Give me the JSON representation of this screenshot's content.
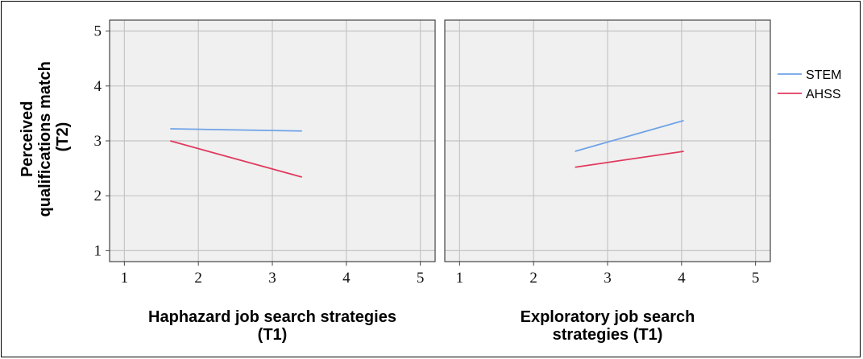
{
  "chart_data": {
    "type": "line",
    "ylabel": [
      "Perceived",
      "qualifications match",
      "(T2)"
    ],
    "ylim": [
      0.8,
      5.2
    ],
    "xlim": [
      0.8,
      5.2
    ],
    "yticks": [
      1,
      2,
      3,
      4,
      5
    ],
    "xticks": [
      1,
      2,
      3,
      4,
      5
    ],
    "grid": true,
    "legend": {
      "placement": "right",
      "entries": [
        {
          "name": "STEM",
          "color": "#6fa3e8"
        },
        {
          "name": "AHSS",
          "color": "#e03a5e"
        }
      ]
    },
    "panels": [
      {
        "xlabel": [
          "Haphazard job search strategies",
          "(T1)"
        ],
        "series": [
          {
            "name": "STEM",
            "color": "#6fa3e8",
            "points": [
              [
                1.62,
                3.22
              ],
              [
                3.4,
                3.18
              ]
            ]
          },
          {
            "name": "AHSS",
            "color": "#e03a5e",
            "points": [
              [
                1.62,
                3.0
              ],
              [
                3.4,
                2.34
              ]
            ]
          }
        ]
      },
      {
        "xlabel": [
          "Exploratory job search",
          "strategies (T1)"
        ],
        "series": [
          {
            "name": "STEM",
            "color": "#6fa3e8",
            "points": [
              [
                2.56,
                2.81
              ],
              [
                4.03,
                3.37
              ]
            ]
          },
          {
            "name": "AHSS",
            "color": "#e03a5e",
            "points": [
              [
                2.56,
                2.52
              ],
              [
                4.03,
                2.81
              ]
            ]
          }
        ]
      }
    ]
  }
}
